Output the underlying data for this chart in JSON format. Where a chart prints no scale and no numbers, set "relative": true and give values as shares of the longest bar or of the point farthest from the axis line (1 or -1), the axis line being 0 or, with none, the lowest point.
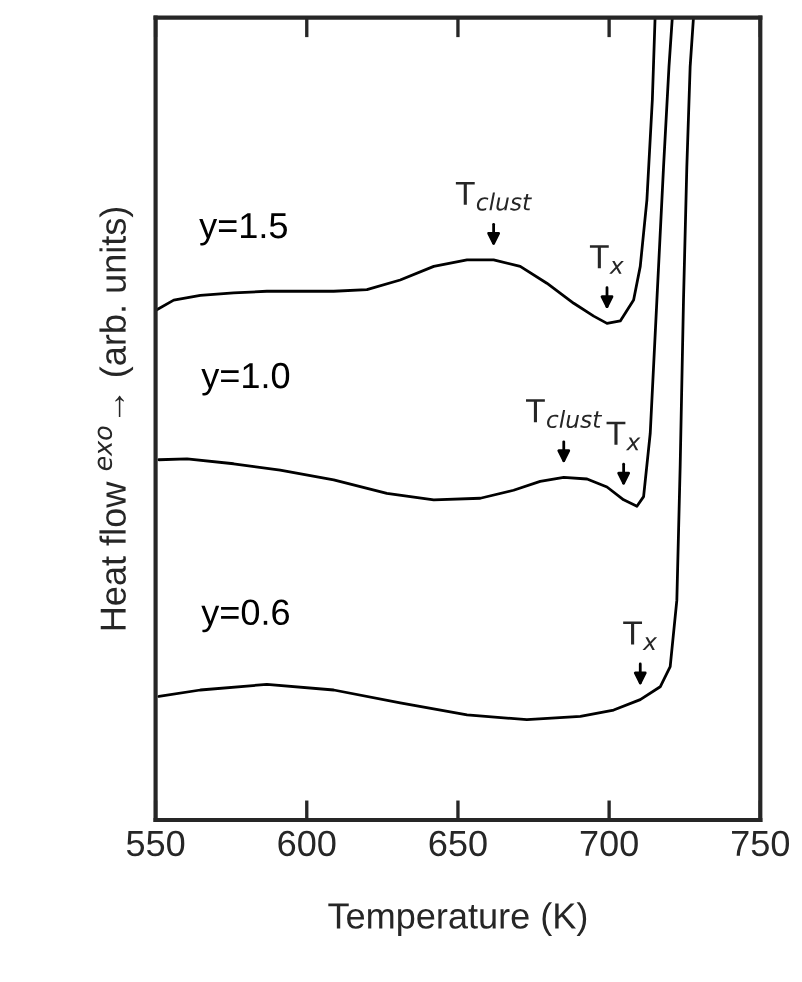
{
  "chart_data": {
    "type": "line",
    "relative": true,
    "xlabel": "Temperature (K)",
    "ylabel": "Heat flow $^{exo}$→ (arb. units)",
    "xlim": [
      550,
      750
    ],
    "xticks": [
      550,
      600,
      650,
      700,
      750
    ],
    "tick_labels": "x",
    "legend": false,
    "grid": false,
    "series": [
      {
        "name": "y=1.5",
        "color": "#000000",
        "x": [
          550.4,
          556.0,
          564.8,
          575.8,
          586.8,
          597.9,
          608.9,
          619.9,
          630.9,
          642.0,
          653.0,
          661.8,
          670.6,
          679.4,
          688.3,
          694.9,
          699.3,
          703.7,
          708.1,
          710.3,
          712.5,
          714.3,
          715.2
        ],
        "values": [
          0.636,
          0.648,
          0.654,
          0.657,
          0.659,
          0.659,
          0.659,
          0.661,
          0.673,
          0.69,
          0.698,
          0.698,
          0.69,
          0.669,
          0.644,
          0.628,
          0.619,
          0.622,
          0.648,
          0.69,
          0.773,
          0.898,
          1.0
        ]
      },
      {
        "name": "y=1.0",
        "color": "#000000",
        "x": [
          551.1,
          560.4,
          575.8,
          591.2,
          608.9,
          626.5,
          642.0,
          657.4,
          668.4,
          677.2,
          685.0,
          692.7,
          699.3,
          704.8,
          709.2,
          711.4,
          713.6,
          715.8,
          718.0,
          719.8,
          720.9
        ],
        "values": [
          0.449,
          0.45,
          0.444,
          0.436,
          0.424,
          0.407,
          0.399,
          0.401,
          0.411,
          0.422,
          0.427,
          0.425,
          0.415,
          0.399,
          0.391,
          0.403,
          0.482,
          0.648,
          0.814,
          0.939,
          1.0
        ]
      },
      {
        "name": "y=0.6",
        "color": "#000000",
        "x": [
          551.1,
          564.8,
          586.8,
          608.9,
          630.9,
          653.0,
          672.8,
          690.5,
          701.5,
          710.3,
          716.9,
          720.2,
          722.4,
          723.5,
          724.6,
          725.7,
          726.8,
          727.9
        ],
        "values": [
          0.154,
          0.162,
          0.169,
          0.162,
          0.146,
          0.131,
          0.125,
          0.129,
          0.137,
          0.15,
          0.166,
          0.191,
          0.274,
          0.441,
          0.648,
          0.814,
          0.939,
          1.0
        ]
      }
    ],
    "annotations": [
      {
        "text": "T$_{clust}$",
        "x": 661.8,
        "y": 0.698
      },
      {
        "text": "T$_{x}$",
        "x": 699.3,
        "y": 0.619
      },
      {
        "text": "T$_{clust}$",
        "x": 685.0,
        "y": 0.427
      },
      {
        "text": "T$_{x}$",
        "x": 704.8,
        "y": 0.399
      },
      {
        "text": "T$_{x}$",
        "x": 710.3,
        "y": 0.15
      }
    ]
  }
}
